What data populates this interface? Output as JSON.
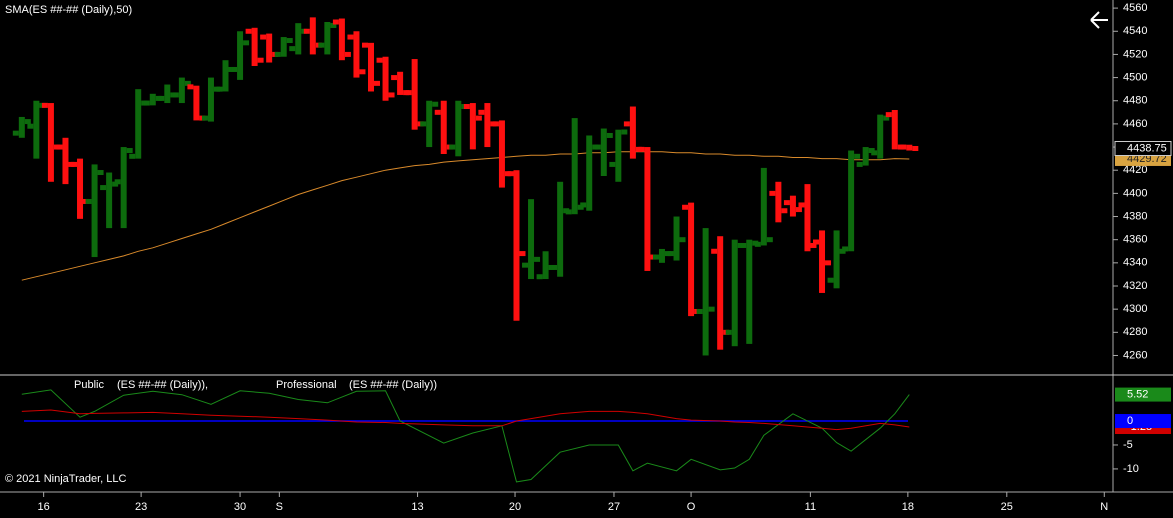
{
  "chart_data": [
    {
      "type": "ohlc",
      "title": "SMA(ES ##-## (Daily),50)",
      "up_color": "#0d6b0d",
      "down_color": "#ff1010",
      "x": [
        0,
        1,
        2,
        3,
        4,
        5,
        6,
        7,
        8,
        9,
        10,
        11,
        12,
        13,
        14,
        15,
        16,
        17,
        18,
        19,
        20,
        21,
        22,
        23,
        24,
        25,
        26,
        27,
        28,
        29,
        30,
        31,
        32,
        33,
        34,
        35,
        36,
        37,
        38,
        39,
        40,
        41,
        42,
        43,
        44,
        45,
        46,
        47,
        48,
        49,
        50,
        51,
        52,
        53,
        54,
        55,
        56,
        57,
        58,
        59,
        60,
        61
      ],
      "open": [
        4452,
        4458,
        4476,
        4440,
        4425,
        4393,
        4405,
        4410,
        4432,
        4478,
        4482,
        4485,
        4492,
        4465,
        4490,
        4507,
        4540,
        4535,
        4520,
        4525,
        4540,
        4528,
        4548,
        4535,
        4528,
        4515,
        4500,
        4487,
        4460,
        4470,
        4440,
        4475,
        4470,
        4460,
        4417,
        4338,
        4328,
        4336,
        4384,
        4390,
        4440,
        4425,
        4460,
        4438,
        4345,
        4348,
        4388,
        4298,
        4350,
        4280,
        4355,
        4356,
        4400,
        4392,
        4390,
        4358,
        4325,
        4352,
        4425,
        4435,
        4468,
        4440
      ],
      "high": [
        4466,
        4480,
        4478,
        4448,
        4430,
        4425,
        4418,
        4440,
        4490,
        4486,
        4494,
        4500,
        4493,
        4500,
        4515,
        4540,
        4543,
        4538,
        4535,
        4547,
        4552,
        4548,
        4551,
        4540,
        4530,
        4518,
        4505,
        4516,
        4480,
        4480,
        4480,
        4478,
        4478,
        4463,
        4420,
        4395,
        4350,
        4410,
        4465,
        4450,
        4456,
        4455,
        4475,
        4440,
        4352,
        4380,
        4392,
        4370,
        4363,
        4360,
        4360,
        4422,
        4410,
        4398,
        4408,
        4368,
        4368,
        4437,
        4440,
        4468,
        4472,
        4442
      ],
      "low": [
        4448,
        4430,
        4410,
        4408,
        4378,
        4345,
        4370,
        4370,
        4430,
        4476,
        4478,
        4478,
        4463,
        4462,
        4488,
        4498,
        4510,
        4513,
        4518,
        4520,
        4520,
        4520,
        4515,
        4500,
        4488,
        4480,
        4485,
        4455,
        4440,
        4434,
        4432,
        4438,
        4440,
        4405,
        4290,
        4326,
        4326,
        4328,
        4382,
        4385,
        4415,
        4410,
        4430,
        4333,
        4340,
        4342,
        4294,
        4260,
        4265,
        4268,
        4270,
        4355,
        4375,
        4380,
        4350,
        4314,
        4318,
        4350,
        4424,
        4430,
        4438,
        4437
      ],
      "close": [
        4462,
        4476,
        4440,
        4425,
        4393,
        4418,
        4408,
        4437,
        4478,
        4482,
        4485,
        4495,
        4465,
        4490,
        4507,
        4530,
        4515,
        4520,
        4532,
        4540,
        4528,
        4545,
        4520,
        4505,
        4495,
        4485,
        4487,
        4460,
        4477,
        4440,
        4475,
        4465,
        4460,
        4417,
        4348,
        4343,
        4336,
        4385,
        4388,
        4440,
        4450,
        4453,
        4438,
        4345,
        4348,
        4360,
        4298,
        4300,
        4280,
        4355,
        4357,
        4360,
        4385,
        4386,
        4355,
        4340,
        4350,
        4432,
        4437,
        4465,
        4440,
        4438.75
      ],
      "overlay": {
        "name": "SMA(ES ##-## (Daily),50)",
        "color": "#d98a2b",
        "values": [
          4325,
          4328,
          4331,
          4334,
          4337,
          4340,
          4343,
          4346,
          4350,
          4353,
          4357,
          4361,
          4365,
          4369,
          4374,
          4379,
          4384,
          4389,
          4394,
          4399,
          4403,
          4407,
          4411,
          4414,
          4417,
          4420,
          4422,
          4424,
          4425,
          4427,
          4428,
          4429,
          4430,
          4431,
          4432,
          4433,
          4433,
          4434,
          4434,
          4435,
          4435,
          4436,
          4436,
          4436,
          4436,
          4435,
          4435,
          4434,
          4434,
          4433,
          4433,
          4432,
          4432,
          4431,
          4431,
          4430,
          4430,
          4429,
          4429,
          4429,
          4430,
          4429.72
        ]
      },
      "xlim": [
        -1.5,
        75
      ],
      "ylim": [
        4244,
        4567
      ],
      "yticks": [
        4260,
        4280,
        4300,
        4320,
        4340,
        4360,
        4380,
        4400,
        4420,
        4440,
        4460,
        4480,
        4500,
        4520,
        4540,
        4560
      ],
      "xticks": [
        {
          "value": 1.5,
          "label": "16"
        },
        {
          "value": 8.2,
          "label": "23"
        },
        {
          "value": 15,
          "label": "30"
        },
        {
          "value": 17.7,
          "label": "S"
        },
        {
          "value": 27.2,
          "label": "13"
        },
        {
          "value": 33.9,
          "label": "20"
        },
        {
          "value": 40.7,
          "label": "27"
        },
        {
          "value": 46,
          "label": "O"
        },
        {
          "value": 54.2,
          "label": "11"
        },
        {
          "value": 60.9,
          "label": "18"
        },
        {
          "value": 67.7,
          "label": "25"
        },
        {
          "value": 74.4,
          "label": "N"
        }
      ]
    },
    {
      "type": "line",
      "x": [
        0,
        2,
        4,
        5,
        7,
        9,
        11,
        13,
        15,
        17,
        19,
        21,
        23,
        25,
        26,
        29,
        31,
        33,
        34,
        35,
        37,
        39,
        41,
        42,
        43,
        45,
        46,
        48,
        49,
        50,
        51,
        53,
        55,
        56,
        57,
        59,
        60,
        61
      ],
      "series": [
        {
          "name": "Public",
          "source": "(ES ##-## (Daily)),",
          "color": "#1a8a1a",
          "values": [
            5.6,
            6.5,
            0.8,
            2,
            5.4,
            6.2,
            5.5,
            3.5,
            6.3,
            5.8,
            4.5,
            3.8,
            6.2,
            6.3,
            0,
            -4.6,
            -2.5,
            -1,
            -12.7,
            -12.2,
            -6.5,
            -5,
            -5,
            -10.4,
            -8.8,
            -10.4,
            -8,
            -10.2,
            -9.8,
            -8,
            -3,
            1.5,
            -1.5,
            -4.5,
            -6.3,
            -1.5,
            1.5,
            5.52
          ]
        },
        {
          "name": "Professional",
          "source": "(ES ##-## (Daily))",
          "color": "#d00000",
          "values": [
            2,
            2.3,
            1.5,
            1.6,
            1.7,
            1.8,
            1.5,
            1.2,
            1,
            0.8,
            0.5,
            0.2,
            -0.2,
            -0.3,
            -0.5,
            -0.8,
            -1,
            -1,
            0,
            0.5,
            1.5,
            2,
            2,
            1.8,
            1.5,
            0.5,
            0.2,
            0,
            -0.2,
            -0.3,
            -0.5,
            -1,
            -1.5,
            -1.8,
            -1.5,
            -0.5,
            -0.8,
            -1.25
          ]
        }
      ],
      "hline": {
        "value": 0,
        "color": "#0000ff"
      },
      "ylim": [
        -14.4,
        9.4
      ],
      "yticks": [
        -5,
        -10
      ]
    }
  ],
  "copyright": "© 2021 NinjaTrader, LLC"
}
